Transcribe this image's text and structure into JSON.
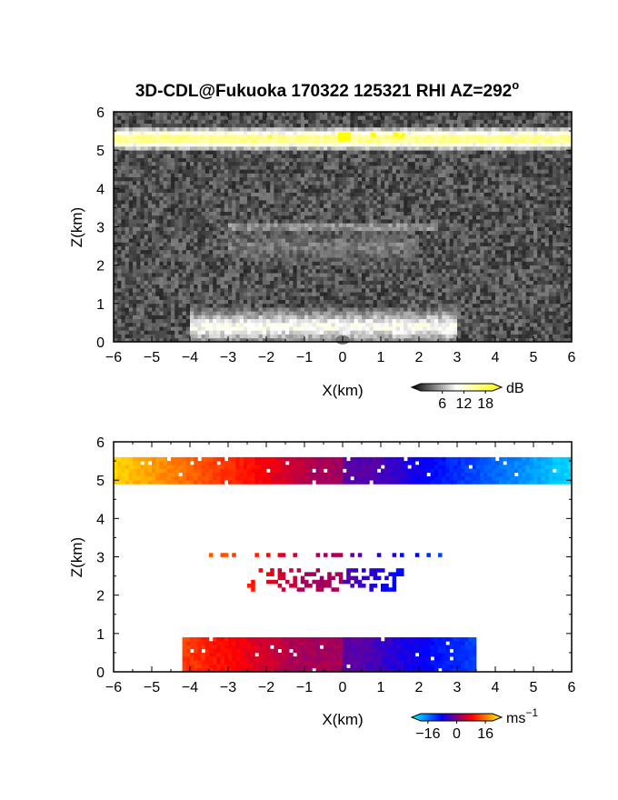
{
  "title": "3D-CDL@Fukuoka 170322 125321 RHI AZ=292",
  "title_degree": "o",
  "chart_data": [
    {
      "type": "heatmap",
      "name": "reflectivity",
      "xlabel": "X(km)",
      "ylabel": "Z(km)",
      "xlim": [
        -6,
        6
      ],
      "ylim": [
        0,
        6
      ],
      "xticks": [
        -6,
        -5,
        -4,
        -3,
        -2,
        -1,
        0,
        1,
        2,
        3,
        4,
        5,
        6
      ],
      "yticks": [
        0,
        1,
        2,
        3,
        4,
        5,
        6
      ],
      "colorbar": {
        "unit": "dB",
        "ticks": [
          6,
          12,
          18
        ],
        "range": [
          0,
          20
        ],
        "colors": [
          "#000000",
          "#ffffff",
          "#ffff00"
        ]
      },
      "layers": [
        {
          "z_center": 5.3,
          "z_thickness": 0.5,
          "x_range": [
            -6,
            6
          ],
          "level_db": 16
        },
        {
          "z_center": 3.0,
          "z_thickness": 0.25,
          "x_range": [
            -3,
            2.5
          ],
          "level_db": 7
        },
        {
          "z_center": 2.5,
          "z_thickness": 0.9,
          "x_range": [
            -3,
            2
          ],
          "level_db": 5
        },
        {
          "z_center": 0.4,
          "z_thickness": 0.8,
          "x_range": [
            -4,
            3
          ],
          "level_db": 11
        }
      ]
    },
    {
      "type": "heatmap",
      "name": "doppler-velocity",
      "xlabel": "X(km)",
      "ylabel": "Z(km)",
      "xlim": [
        -6,
        6
      ],
      "ylim": [
        0,
        6
      ],
      "xticks": [
        -6,
        -5,
        -4,
        -3,
        -2,
        -1,
        0,
        1,
        2,
        3,
        4,
        5,
        6
      ],
      "yticks": [
        0,
        1,
        2,
        3,
        4,
        5,
        6
      ],
      "colorbar": {
        "unit": "ms",
        "unit_exponent": "-1",
        "ticks": [
          -16,
          0,
          16
        ],
        "range": [
          -20,
          20
        ],
        "colors": [
          "#00ffff",
          "#0000ff",
          "#ff0000",
          "#ffff00"
        ]
      },
      "layers": [
        {
          "z_center": 5.25,
          "z_thickness": 0.7,
          "x_range": [
            -6,
            6
          ],
          "velocity_at_x_min": 18,
          "velocity_at_x_max": -18
        },
        {
          "z_center": 3.05,
          "z_thickness": 0.15,
          "x_range": [
            -3.5,
            2.6
          ],
          "velocity_at_x_min": 12,
          "velocity_at_x_max": -10
        },
        {
          "z_center": 2.4,
          "z_thickness": 0.6,
          "x_range": [
            -2.5,
            1.6
          ],
          "velocity_at_x_min": 8,
          "velocity_at_x_max": -8
        },
        {
          "z_center": 0.45,
          "z_thickness": 0.9,
          "x_range": [
            -4.2,
            3.5
          ],
          "velocity_at_x_min": 10,
          "velocity_at_x_max": -10
        }
      ]
    }
  ]
}
